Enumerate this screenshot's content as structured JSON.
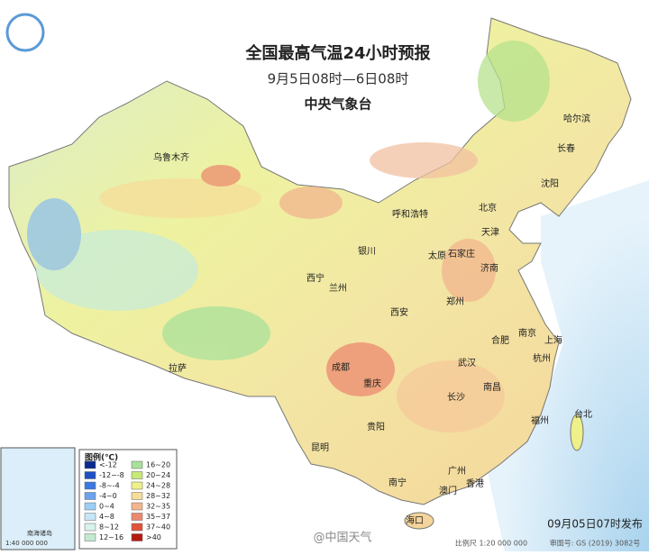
{
  "header": {
    "title": "全国最高气温24小时预报",
    "subtitle": "9月5日08时—6日08时",
    "issuer": "中央气象台"
  },
  "cities": [
    "哈尔滨",
    "长春",
    "沈阳",
    "乌鲁木齐",
    "呼和浩特",
    "北京",
    "天津",
    "石家庄",
    "太原",
    "济南",
    "银川",
    "西宁",
    "兰州",
    "郑州",
    "西安",
    "合肥",
    "南京",
    "上海",
    "武汉",
    "杭州",
    "成都",
    "重庆",
    "南昌",
    "长沙",
    "拉萨",
    "贵阳",
    "福州",
    "台北",
    "昆明",
    "南宁",
    "广州",
    "澳门",
    "香港",
    "海口"
  ],
  "legend": {
    "title": "图例(℃)",
    "items": [
      {
        "label": "<-12",
        "color": "#0b2a8f"
      },
      {
        "label": "-12~-8",
        "color": "#1f4fc4"
      },
      {
        "label": "-8~-4",
        "color": "#3c78e0"
      },
      {
        "label": "-4~0",
        "color": "#6ba3ee"
      },
      {
        "label": "0~4",
        "color": "#9ccdf5"
      },
      {
        "label": "4~8",
        "color": "#c7e6f7"
      },
      {
        "label": "8~12",
        "color": "#d9f2ec"
      },
      {
        "label": "12~16",
        "color": "#c2ead0"
      },
      {
        "label": "16~20",
        "color": "#a9e19a"
      },
      {
        "label": "20~24",
        "color": "#c7e978"
      },
      {
        "label": "24~28",
        "color": "#eef08a"
      },
      {
        "label": "28~32",
        "color": "#f6dd9a"
      },
      {
        "label": "32~35",
        "color": "#f2b58e"
      },
      {
        "label": "35~37",
        "color": "#ec8a6e"
      },
      {
        "label": "37~40",
        "color": "#e0533a"
      },
      {
        "label": ">40",
        "color": "#b51a10"
      }
    ]
  },
  "inset": {
    "title": "南海诸岛",
    "scale": "1:40 000 000"
  },
  "footer": {
    "published": "09月05日07时发布",
    "watermark": "@中国天气",
    "scale": "比例尺 1:20 000 000",
    "approval": "审图号: GS (2019) 3082号"
  }
}
